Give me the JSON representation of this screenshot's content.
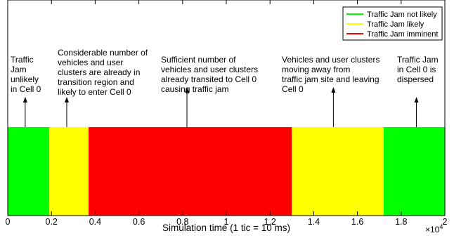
{
  "chart_data": {
    "type": "bar",
    "orientation": "horizontal-timeline",
    "xlabel": "Simulation time (1 tic = 10 ms)",
    "x_exponent_label": "×10",
    "x_exponent_power": "4",
    "xlim": [
      0,
      20000
    ],
    "x_ticks": [
      0,
      2000,
      4000,
      6000,
      8000,
      10000,
      12000,
      14000,
      16000,
      18000,
      20000
    ],
    "x_tick_labels": [
      "0",
      "0.2",
      "0.4",
      "0.6",
      "0.8",
      "1",
      "1.2",
      "1.4",
      "1.6",
      "1.8",
      "2"
    ],
    "grid": false,
    "legend_position": "top-right",
    "legend": [
      {
        "label": "Traffic Jam not likely",
        "color": "#00ff00"
      },
      {
        "label": "Traffic Jam likely",
        "color": "#ffff00"
      },
      {
        "label": "Traffic Jam imminent",
        "color": "#ff0000"
      }
    ],
    "segments": [
      {
        "start": 0,
        "end": 1900,
        "state": "Traffic Jam not likely",
        "color": "#00ff00"
      },
      {
        "start": 1900,
        "end": 3700,
        "state": "Traffic Jam likely",
        "color": "#ffff00"
      },
      {
        "start": 3700,
        "end": 13000,
        "state": "Traffic Jam imminent",
        "color": "#ff0000"
      },
      {
        "start": 13000,
        "end": 17200,
        "state": "Traffic Jam likely",
        "color": "#ffff00"
      },
      {
        "start": 17200,
        "end": 20000,
        "state": "Traffic Jam not likely",
        "color": "#00ff00"
      }
    ],
    "annotations": [
      {
        "x": 800,
        "lines": [
          "Traffic",
          "Jam",
          "unlikely",
          "in Cell 0"
        ]
      },
      {
        "x": 2700,
        "lines": [
          "Considerable number of",
          "vehicles and user",
          "clusters are already in",
          "transition region and",
          "likely to enter Cell 0"
        ]
      },
      {
        "x": 8200,
        "lines": [
          "Sufficient number of",
          "vehicles and user clusters",
          "already transited to Cell 0",
          "causing traffic jam"
        ]
      },
      {
        "x": 14900,
        "lines": [
          "Vehicles and user clusters",
          "moving away from",
          "traffic jam site and leaving",
          "Cell 0"
        ]
      },
      {
        "x": 18700,
        "lines": [
          "Traffic Jam",
          "in Cell 0 is",
          "dispersed"
        ]
      }
    ]
  }
}
